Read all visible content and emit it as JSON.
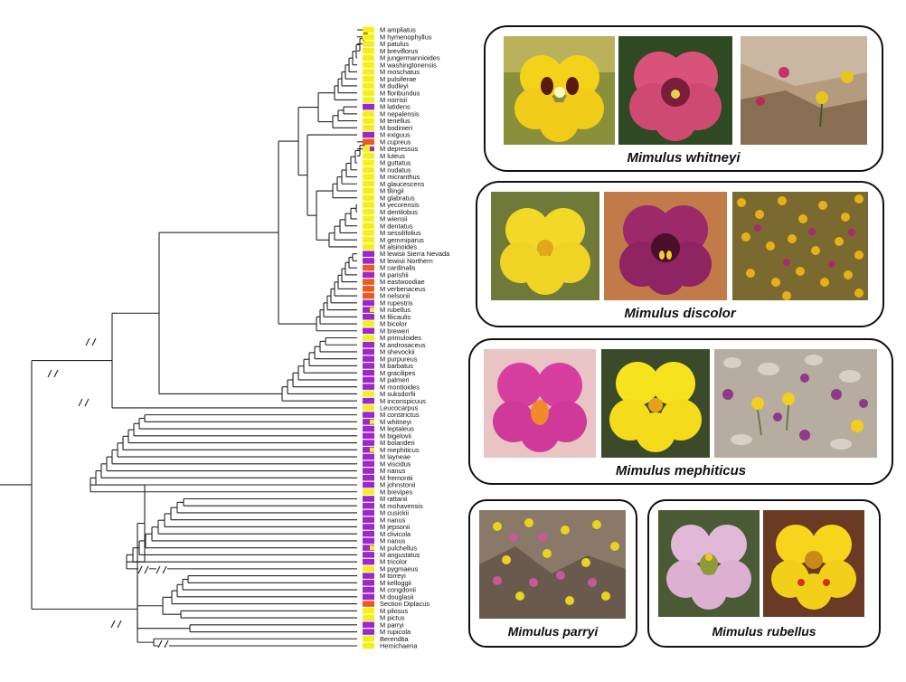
{
  "tree": {
    "taxa": [
      {
        "name": "M ampliatus",
        "color": "yellow"
      },
      {
        "name": "M hymenophyllus",
        "color": "yellow"
      },
      {
        "name": "M patulus",
        "color": "yellow"
      },
      {
        "name": "M breviflorus",
        "color": "yellow"
      },
      {
        "name": "M jungermannioides",
        "color": "yellow"
      },
      {
        "name": "M washingtonensis",
        "color": "yellow"
      },
      {
        "name": "M moschatus",
        "color": "yellow"
      },
      {
        "name": "M pulsiferae",
        "color": "yellow"
      },
      {
        "name": "M dudleyi",
        "color": "yellow"
      },
      {
        "name": "M floribundus",
        "color": "yellow"
      },
      {
        "name": "M norrisii",
        "color": "yellow"
      },
      {
        "name": "M latidens",
        "color": "purple"
      },
      {
        "name": "M nepalensis",
        "color": "yellow"
      },
      {
        "name": "M tenellus",
        "color": "yellow"
      },
      {
        "name": "M bodinieri",
        "color": "yellow"
      },
      {
        "name": "M exiguus",
        "color": "purple"
      },
      {
        "name": "M cupreus",
        "color": "orange"
      },
      {
        "name": "M depressus",
        "color": "yellow",
        "mark": "purple"
      },
      {
        "name": "M luteus",
        "color": "yellow"
      },
      {
        "name": "M guttatus",
        "color": "yellow"
      },
      {
        "name": "M nudatus",
        "color": "yellow"
      },
      {
        "name": "M micranthus",
        "color": "yellow"
      },
      {
        "name": "M glaucescens",
        "color": "yellow"
      },
      {
        "name": "M tilingii",
        "color": "yellow"
      },
      {
        "name": "M glabratus",
        "color": "yellow"
      },
      {
        "name": "M yecorensis",
        "color": "yellow"
      },
      {
        "name": "M dentilobus",
        "color": "yellow"
      },
      {
        "name": "M wiensii",
        "color": "yellow"
      },
      {
        "name": "M dentatus",
        "color": "yellow"
      },
      {
        "name": "M sessilifolius",
        "color": "yellow"
      },
      {
        "name": "M gemmiparus",
        "color": "yellow"
      },
      {
        "name": "M alsinoides",
        "color": "yellow"
      },
      {
        "name": "M lewisii Sierra Nevada",
        "color": "purple"
      },
      {
        "name": "M lewisii Northern",
        "color": "purple"
      },
      {
        "name": "M cardinalis",
        "color": "orange"
      },
      {
        "name": "M parishii",
        "color": "purple"
      },
      {
        "name": "M eastwoodiae",
        "color": "orange"
      },
      {
        "name": "M verbenaceus",
        "color": "orange"
      },
      {
        "name": "M nelsonii",
        "color": "orange"
      },
      {
        "name": "M rupestris",
        "color": "purple"
      },
      {
        "name": "M rubellus",
        "color": "purple",
        "mark": "yellow"
      },
      {
        "name": "M filicaulis",
        "color": "purple"
      },
      {
        "name": "M bicolor",
        "color": "yellow"
      },
      {
        "name": "M breweri",
        "color": "purple"
      },
      {
        "name": "M primuloides",
        "color": "yellow"
      },
      {
        "name": "M androsaceus",
        "color": "purple"
      },
      {
        "name": "M shevockii",
        "color": "purple"
      },
      {
        "name": "M purpureus",
        "color": "purple"
      },
      {
        "name": "M barbatus",
        "color": "purple"
      },
      {
        "name": "M gracilipes",
        "color": "purple"
      },
      {
        "name": "M palmeri",
        "color": "purple"
      },
      {
        "name": "M montioides",
        "color": "purple"
      },
      {
        "name": "M suksdorfii",
        "color": "yellow"
      },
      {
        "name": "M inconspicuus",
        "color": "purple"
      },
      {
        "name": "Leucocarpus",
        "color": "yellow"
      },
      {
        "name": "M constrictus",
        "color": "purple"
      },
      {
        "name": "M whitneyi",
        "color": "purple",
        "mark": "yellow"
      },
      {
        "name": "M leptaleus",
        "color": "purple"
      },
      {
        "name": "M bigelovii",
        "color": "purple"
      },
      {
        "name": "M bolanderi",
        "color": "purple"
      },
      {
        "name": "M mephiticus",
        "color": "purple",
        "mark": "yellow"
      },
      {
        "name": "M layneae",
        "color": "purple"
      },
      {
        "name": "M viscidus",
        "color": "purple"
      },
      {
        "name": "M nanus",
        "color": "purple"
      },
      {
        "name": "M fremontii",
        "color": "purple"
      },
      {
        "name": "M johnstonii",
        "color": "purple"
      },
      {
        "name": "M brevipes",
        "color": "yellow"
      },
      {
        "name": "M rattanii",
        "color": "purple"
      },
      {
        "name": "M mohavensis",
        "color": "purple"
      },
      {
        "name": "M cusickii",
        "color": "purple"
      },
      {
        "name": "M nanus",
        "color": "purple"
      },
      {
        "name": "M jepsonii",
        "color": "purple"
      },
      {
        "name": "M clivicola",
        "color": "purple"
      },
      {
        "name": "M nanus",
        "color": "purple"
      },
      {
        "name": "M pulchellus",
        "color": "purple",
        "mark": "yellow"
      },
      {
        "name": "M angustatus",
        "color": "purple"
      },
      {
        "name": "M tricolor",
        "color": "purple"
      },
      {
        "name": "M pygmaeus",
        "color": "yellow"
      },
      {
        "name": "M torreyi",
        "color": "purple"
      },
      {
        "name": "M kelloggii",
        "color": "purple"
      },
      {
        "name": "M congdonii",
        "color": "purple"
      },
      {
        "name": "M douglasii",
        "color": "purple"
      },
      {
        "name": "Section Diplacus",
        "color": "orange"
      },
      {
        "name": "M pilosus",
        "color": "yellow"
      },
      {
        "name": "M pictus",
        "color": "yellow"
      },
      {
        "name": "M parryi",
        "color": "purple"
      },
      {
        "name": "M rupicola",
        "color": "purple"
      },
      {
        "name": "Berendtia",
        "color": "yellow"
      },
      {
        "name": "Hemichaena",
        "color": "yellow"
      }
    ]
  },
  "colors": {
    "yellow": "#f6ef16",
    "purple": "#9d27c8",
    "orange": "#f2581e",
    "branch": "#222222"
  },
  "panels": [
    {
      "species": "Mimulus whitneyi"
    },
    {
      "species": "Mimulus discolor"
    },
    {
      "species": "Mimulus mephiticus"
    },
    {
      "species": "Mimulus parryi"
    },
    {
      "species": "Mimulus rubellus"
    }
  ]
}
